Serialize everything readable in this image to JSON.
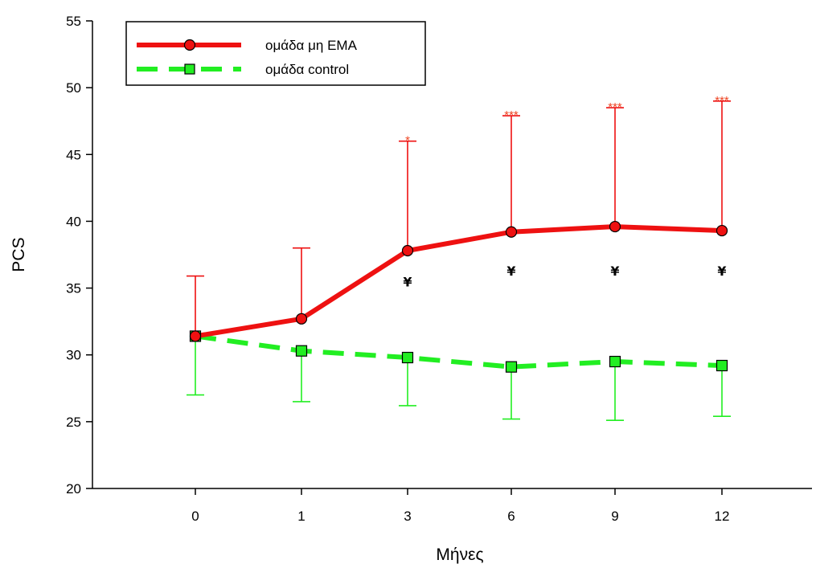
{
  "chart_data": {
    "type": "line",
    "xlabel": "Μήνες",
    "ylabel": "PCS",
    "ylim": [
      20,
      55
    ],
    "yticks": [
      20,
      25,
      30,
      35,
      40,
      45,
      50,
      55
    ],
    "categories": [
      "0",
      "1",
      "3",
      "6",
      "9",
      "12"
    ],
    "legend_position": "top-left",
    "grid": false,
    "series": [
      {
        "name": "ομάδα μη ΕΜΑ",
        "color": "#ee1111",
        "line_style": "solid",
        "marker": "circle",
        "values": [
          31.4,
          32.7,
          37.8,
          39.2,
          39.6,
          39.3
        ],
        "error_upper": [
          35.9,
          38.0,
          46.0,
          47.9,
          48.5,
          49.0
        ],
        "error_direction": "up"
      },
      {
        "name": "ομάδα control",
        "color": "#22ee22",
        "line_style": "dashed",
        "marker": "square",
        "values": [
          31.4,
          30.3,
          29.8,
          29.1,
          29.5,
          29.2
        ],
        "error_lower": [
          27.0,
          26.5,
          26.2,
          25.2,
          25.1,
          25.4
        ],
        "error_direction": "down"
      }
    ],
    "annotations": [
      {
        "category": "3",
        "text": "*",
        "color": "#ee4422",
        "y": 46.0
      },
      {
        "category": "6",
        "text": "***",
        "color": "#ee4422",
        "y": 47.9
      },
      {
        "category": "9",
        "text": "***",
        "color": "#ee4422",
        "y": 48.5
      },
      {
        "category": "12",
        "text": "***",
        "color": "#ee4422",
        "y": 49.0
      },
      {
        "category": "3",
        "text": "¥",
        "color": "#000000",
        "y": 35.5
      },
      {
        "category": "6",
        "text": "¥",
        "color": "#000000",
        "y": 36.3
      },
      {
        "category": "9",
        "text": "¥",
        "color": "#000000",
        "y": 36.3
      },
      {
        "category": "12",
        "text": "¥",
        "color": "#000000",
        "y": 36.3
      }
    ]
  }
}
